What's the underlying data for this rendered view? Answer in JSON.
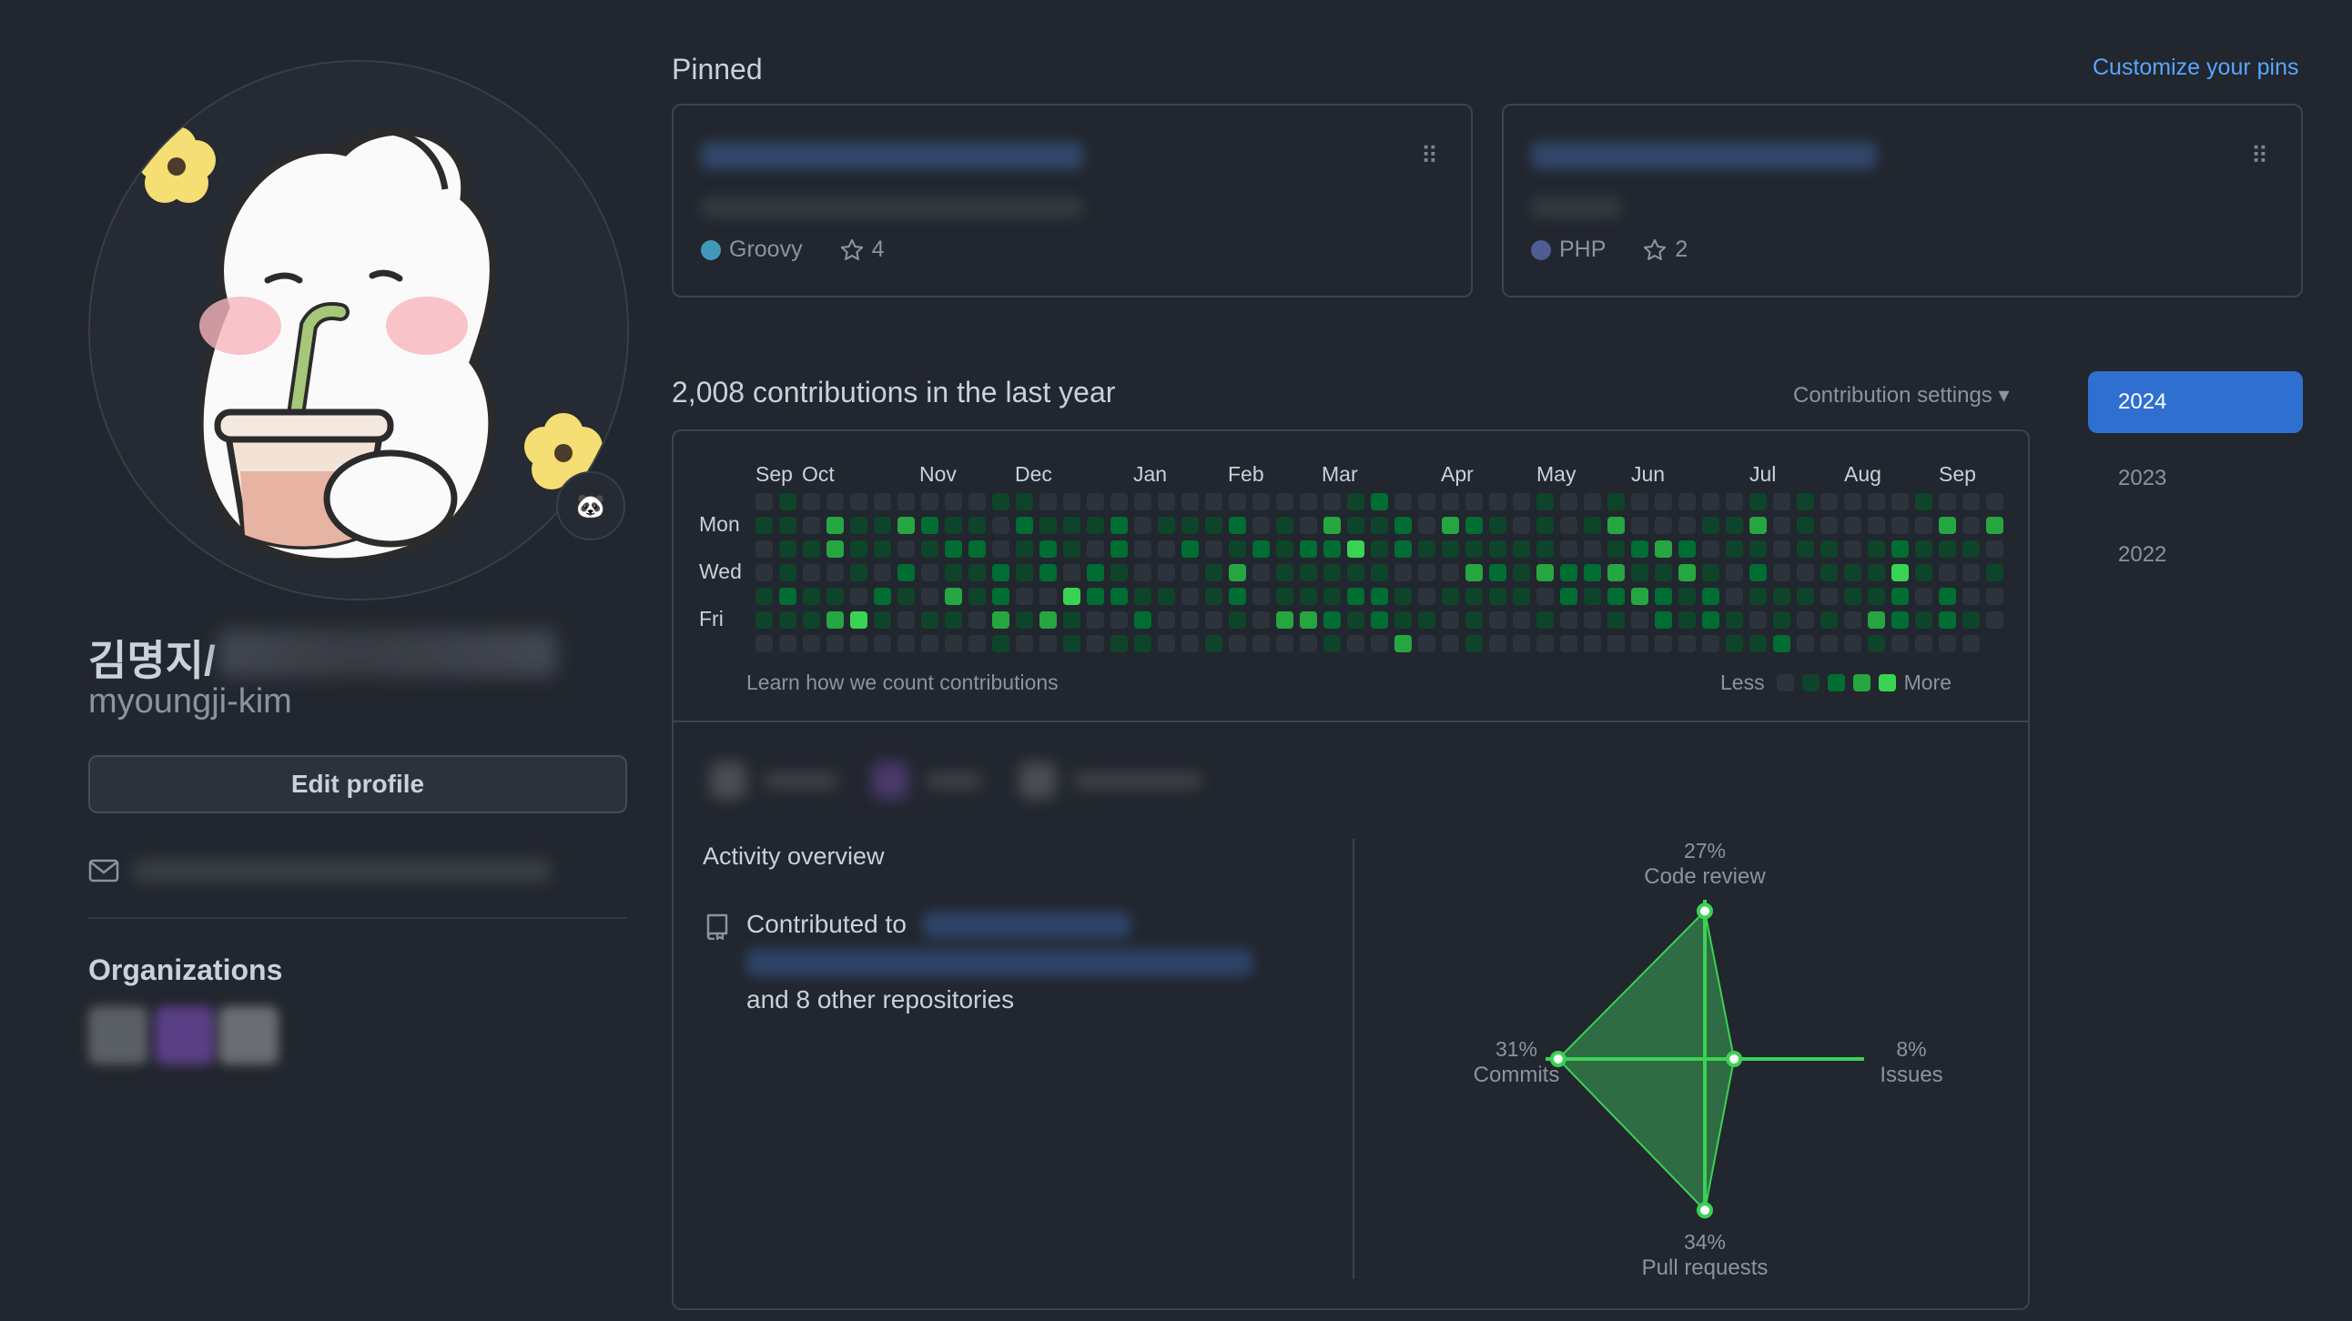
{
  "profile": {
    "display_name": "김명지/",
    "username": "myoungji-kim",
    "edit_profile_label": "Edit profile",
    "avatar_badge_emoji": "🐼",
    "organizations_title": "Organizations"
  },
  "pinned": {
    "title": "Pinned",
    "customize_label": "Customize your pins",
    "repos": [
      {
        "language": "Groovy",
        "language_color": "#4298b8",
        "stars": "4"
      },
      {
        "language": "PHP",
        "language_color": "#4f5d95",
        "stars": "2"
      }
    ]
  },
  "contributions": {
    "title": "2,008 contributions in the last year",
    "settings_label": "Contribution settings ▾",
    "months": [
      "Sep",
      "Oct",
      "Nov",
      "Dec",
      "Jan",
      "Feb",
      "Mar",
      "Apr",
      "May",
      "Jun",
      "Jul",
      "Aug",
      "Sep"
    ],
    "days": [
      "Mon",
      "Wed",
      "Fri"
    ],
    "learn_link": "Learn how we count contributions",
    "legend_less": "Less",
    "legend_more": "More",
    "level_colors": [
      "#2d333b",
      "#0e4429",
      "#006d32",
      "#26a641",
      "#39d353"
    ]
  },
  "activity": {
    "title": "Activity overview",
    "contributed_to_label": "Contributed to",
    "other_repos": "and 8 other repositories",
    "radar": {
      "code_review": {
        "pct": "27%",
        "label": "Code review",
        "value": 27
      },
      "commits": {
        "pct": "31%",
        "label": "Commits",
        "value": 31
      },
      "issues": {
        "pct": "8%",
        "label": "Issues",
        "value": 8
      },
      "pull_requests": {
        "pct": "34%",
        "label": "Pull requests",
        "value": 34
      }
    },
    "accent_color": "#39d353",
    "fill_color": "#2f6b43"
  },
  "years": [
    "2024",
    "2023",
    "2022"
  ]
}
